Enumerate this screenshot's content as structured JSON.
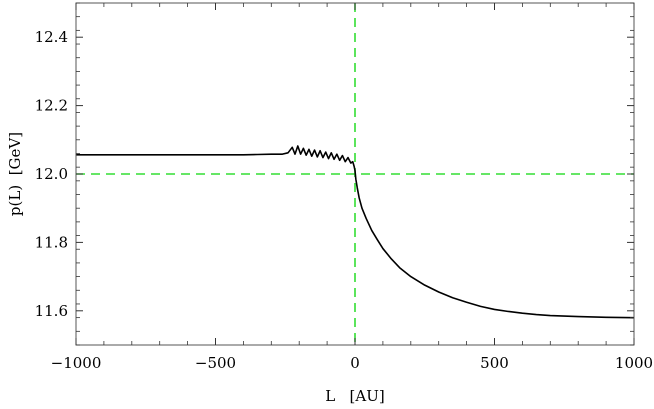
{
  "chart_data": {
    "type": "line",
    "xlabel": "L   [AU]",
    "ylabel": "p(L)  [GeV]",
    "xlim": [
      -1000,
      1000
    ],
    "ylim": [
      11.5,
      12.5
    ],
    "x_ticks": [
      -1000,
      -500,
      0,
      500,
      1000
    ],
    "x_tick_labels": [
      "−1000",
      "−500",
      "0",
      "500",
      "1000"
    ],
    "y_ticks": [
      11.6,
      11.8,
      12.0,
      12.2,
      12.4
    ],
    "y_tick_labels": [
      "11.6",
      "11.8",
      "12.0",
      "12.2",
      "12.4"
    ],
    "grid": false,
    "reference_lines": [
      {
        "orientation": "vertical",
        "value": 0,
        "style": "dashed",
        "color": "#33dd33"
      },
      {
        "orientation": "horizontal",
        "value": 12.0,
        "style": "dashed",
        "color": "#33dd33"
      }
    ],
    "series": [
      {
        "color": "#000000",
        "x": [
          -1000,
          -900,
          -800,
          -700,
          -600,
          -500,
          -400,
          -350,
          -300,
          -260,
          -240,
          -225,
          -215,
          -205,
          -195,
          -185,
          -175,
          -165,
          -155,
          -145,
          -135,
          -125,
          -115,
          -105,
          -95,
          -85,
          -75,
          -65,
          -55,
          -45,
          -35,
          -25,
          -15,
          -8,
          -3,
          0,
          3,
          8,
          15,
          25,
          40,
          60,
          80,
          100,
          130,
          160,
          200,
          250,
          300,
          350,
          400,
          450,
          500,
          550,
          600,
          650,
          700,
          800,
          900,
          1000
        ],
        "y": [
          12.056,
          12.056,
          12.056,
          12.056,
          12.056,
          12.056,
          12.056,
          12.057,
          12.058,
          12.058,
          12.062,
          12.078,
          12.058,
          12.082,
          12.058,
          12.075,
          12.055,
          12.072,
          12.052,
          12.07,
          12.05,
          12.068,
          12.048,
          12.064,
          12.045,
          12.062,
          12.043,
          12.058,
          12.04,
          12.054,
          12.036,
          12.048,
          12.032,
          12.036,
          12.022,
          12.01,
          11.985,
          11.96,
          11.93,
          11.9,
          11.87,
          11.835,
          11.808,
          11.782,
          11.752,
          11.726,
          11.7,
          11.675,
          11.655,
          11.638,
          11.625,
          11.613,
          11.604,
          11.598,
          11.593,
          11.589,
          11.586,
          11.583,
          11.581,
          11.58
        ]
      }
    ]
  }
}
